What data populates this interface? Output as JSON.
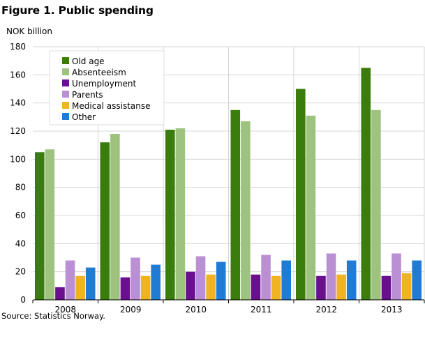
{
  "title": "Figure 1. Public spending",
  "source": "Source: Statistics Norway.",
  "colors": {
    "Old age": "#3a7d0c",
    "Absenteeism": "#9dc37e",
    "Unemployment": "#6a0f8e",
    "Parents": "#bb8fd3",
    "Medical assistanse": "#f0b323",
    "Other": "#1f7bd4",
    "grid": "#d4d4d4",
    "axis": "#000000"
  },
  "chart_data": {
    "type": "bar",
    "ylabel": "NOK billion",
    "xlabel": "",
    "ylim": [
      0,
      180
    ],
    "yticks": [
      "0",
      "20",
      "40",
      "60",
      "80",
      "100",
      "120",
      "140",
      "160",
      "180"
    ],
    "grid": true,
    "legend_position": "top-left",
    "categories": [
      "2008",
      "2009",
      "2010",
      "2011",
      "2012",
      "2013"
    ],
    "series": [
      {
        "name": "Old age",
        "values": [
          105,
          112,
          121,
          135,
          150,
          165
        ]
      },
      {
        "name": "Absenteeism",
        "values": [
          107,
          118,
          122,
          127,
          131,
          135
        ]
      },
      {
        "name": "Unemployment",
        "values": [
          9,
          16,
          20,
          18,
          17,
          17
        ]
      },
      {
        "name": "Parents",
        "values": [
          28,
          30,
          31,
          32,
          33,
          33
        ]
      },
      {
        "name": "Medical assistanse",
        "values": [
          17,
          17,
          18,
          17,
          18,
          19
        ]
      },
      {
        "name": "Other",
        "values": [
          23,
          25,
          27,
          28,
          28,
          28
        ]
      }
    ]
  }
}
